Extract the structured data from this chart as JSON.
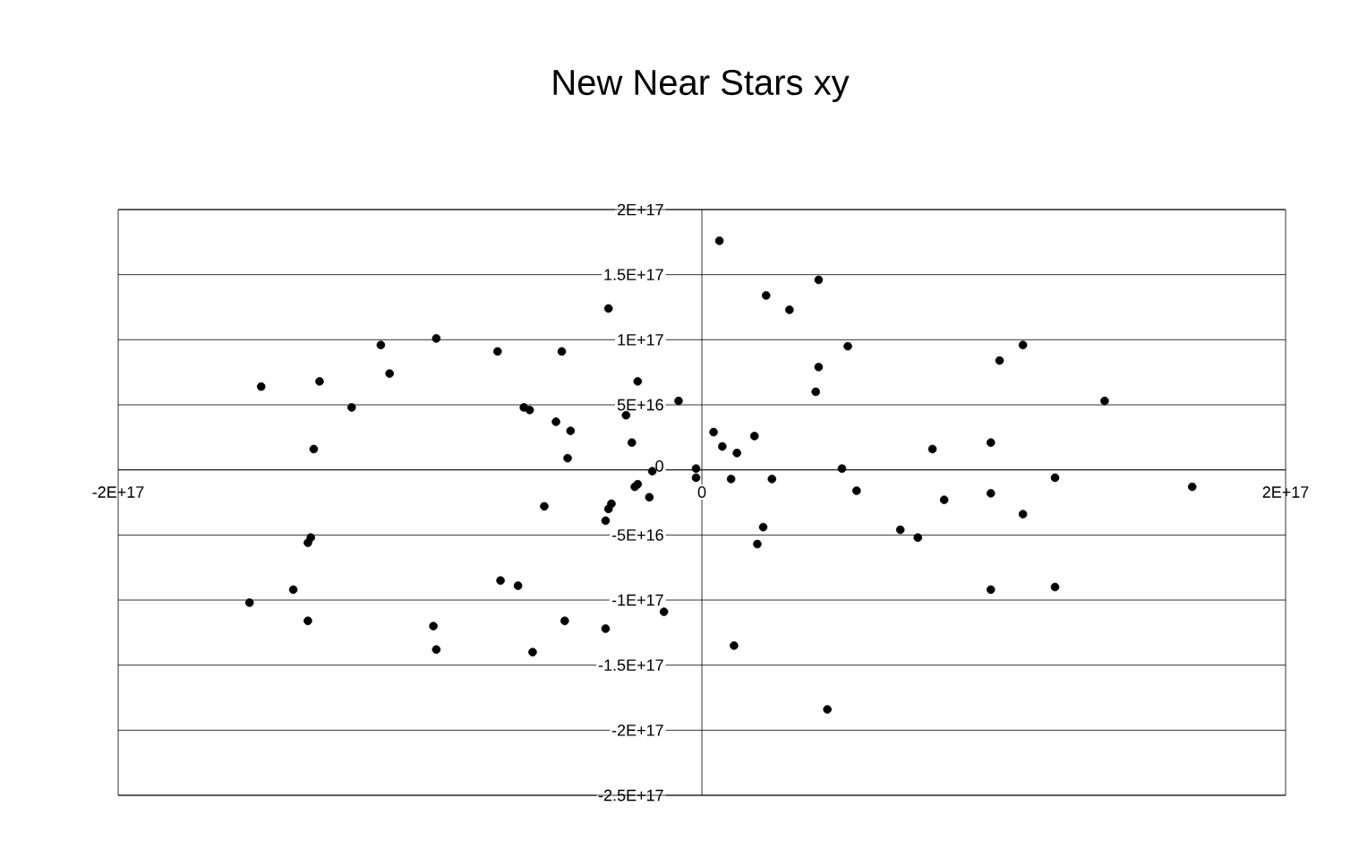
{
  "chart_data": {
    "type": "scatter",
    "title": "New Near Stars xy",
    "color": "#000000",
    "grid": "y",
    "xlim": [
      -2e+17,
      2e+17
    ],
    "ylim": [
      -2.5e+17,
      2e+17
    ],
    "xticks": [
      {
        "value": -2e+17,
        "label": "-2E+17"
      },
      0,
      {
        "value": 2e+17,
        "label": "2E+17"
      }
    ],
    "yticks": [
      {
        "value": -2.5e+17,
        "label": "-2.5E+17"
      },
      {
        "value": -2e+17,
        "label": "-2E+17"
      },
      {
        "value": -1.5e+17,
        "label": "-1.5E+17"
      },
      {
        "value": -1e+17,
        "label": "-1E+17"
      },
      {
        "value": -5e+16,
        "label": "-5E+16"
      },
      0,
      {
        "value": 5e+16,
        "label": "5E+16"
      },
      {
        "value": 1e+17,
        "label": "1E+17"
      },
      {
        "value": 1.5e+17,
        "label": "1.5E+17"
      },
      {
        "value": 2e+17,
        "label": "2E+17"
      }
    ],
    "x": [
      -1.51e+17,
      -1.31e+17,
      -1.2e+17,
      -1.1e+17,
      -1.07e+17,
      -9.1e+16,
      -1.33e+17,
      -7e+16,
      -4.8e+16,
      -6.1e+16,
      -5.9e+16,
      -5e+16,
      -4.5e+16,
      -4.6e+16,
      -3.2e+16,
      -2.2e+16,
      -2.6e+16,
      -2.4e+16,
      -8000000000000000.0,
      -1.7e+16,
      -2.2e+16,
      -2.3e+16,
      -2000000000000000.0,
      -2000000000000000.0,
      6000000000000000.0,
      2.2e+16,
      4e+16,
      3e+16,
      5e+16,
      4e+16,
      3.9e+16,
      1.02e+17,
      1.1e+17,
      1.38e+17,
      4000000000000000.0,
      7000000000000000.0,
      1.2e+16,
      1.8e+16,
      7.9e+16,
      9.9e+16,
      1e+16,
      2.4e+16,
      4.8e+16,
      1.21e+17,
      1.68e+17,
      5.3e+16,
      8.3e+16,
      9.9e+16,
      1.1e+17,
      2.1e+16,
      1.9e+16,
      6.8e+16,
      7.4e+16,
      9.9e+16,
      1.21e+17,
      1.1e+16,
      4.3e+16,
      -1.8e+16,
      -5.4e+16,
      -3.1e+16,
      -3.2e+16,
      -3.3e+16,
      -1.34e+17,
      -1.35e+17,
      -1.55e+17,
      -1.4e+17,
      -1.35e+17,
      -6.9e+16,
      -6.3e+16,
      -9.2e+16,
      -9.1e+16,
      -5.8e+16,
      -4.7e+16,
      -3.3e+16,
      -1.3e+16
    ],
    "values": [
      6.4e+16,
      6.8e+16,
      4.8e+16,
      9.6e+16,
      7.4e+16,
      1.01e+17,
      1.6e+16,
      9.1e+16,
      9.1e+16,
      4.8e+16,
      4.6e+16,
      3.7e+16,
      3e+16,
      9000000000000000.0,
      1.24e+17,
      6.8e+16,
      4.2e+16,
      2.1e+16,
      5.3e+16,
      -1000000000000000.0,
      -1.1e+16,
      -1.3e+16,
      1000000000000000.0,
      -6000000000000000.0,
      1.76e+17,
      1.34e+17,
      1.46e+17,
      1.23e+17,
      9.5e+16,
      7.9e+16,
      6e+16,
      8.4e+16,
      9.6e+16,
      5.3e+16,
      2.9e+16,
      1.8e+16,
      1.3e+16,
      2.6e+16,
      1.6e+16,
      2.1e+16,
      -7000000000000000.0,
      -7000000000000000.0,
      1000000000000000.0,
      -6000000000000000.0,
      -1.3e+16,
      -1.6e+16,
      -2.3e+16,
      -1.8e+16,
      -3.4e+16,
      -4.4e+16,
      -5.7e+16,
      -4.6e+16,
      -5.2e+16,
      -9.2e+16,
      -9e+16,
      -1.35e+17,
      -1.84e+17,
      -2.1e+16,
      -2.8e+16,
      -2.6e+16,
      -3e+16,
      -3.9e+16,
      -5.2e+16,
      -5.6e+16,
      -1.02e+17,
      -9.2e+16,
      -1.16e+17,
      -8.5e+16,
      -8.9e+16,
      -1.2e+17,
      -1.38e+17,
      -1.4e+17,
      -1.16e+17,
      -1.22e+17,
      -1.09e+17
    ]
  }
}
